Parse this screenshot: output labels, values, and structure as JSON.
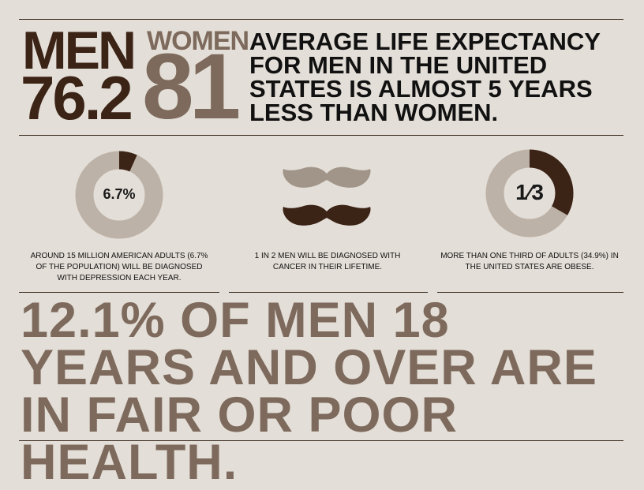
{
  "life_expectancy": {
    "men_label": "MEN",
    "men_value": "76.2",
    "women_label": "WOMEN",
    "women_value": "81",
    "headline": "AVERAGE LIFE EXPECTANCY FOR MEN IN THE UNITED STATES IS ALMOST 5 YEARS LESS THAN WOMEN."
  },
  "stats": [
    {
      "label": "6.7%",
      "fraction": 0.067,
      "text": "AROUND 15 MILLION AMERICAN ADULTS (6.7% OF THE POPULATION) WILL BE DIAGNOSED WITH DEPRESSION EACH YEAR."
    },
    {
      "text": "1 IN 2 MEN WILL BE DIAGNOSED WITH CANCER IN THEIR LIFETIME."
    },
    {
      "label": "1⁄3",
      "fraction": 0.333,
      "text": "MORE THAN ONE THIRD OF ADULTS (34.9%) IN THE UNITED STATES ARE OBESE."
    }
  ],
  "footer_statement": "12.1% OF MEN 18 YEARS AND OVER ARE IN FAIR OR POOR HEALTH.",
  "colors": {
    "background": "#e3ded7",
    "dark_brown": "#3b2316",
    "light_brown": "#7d6a5c",
    "ring_light": "#bdb2a7",
    "mustache_light": "#a1958a"
  }
}
